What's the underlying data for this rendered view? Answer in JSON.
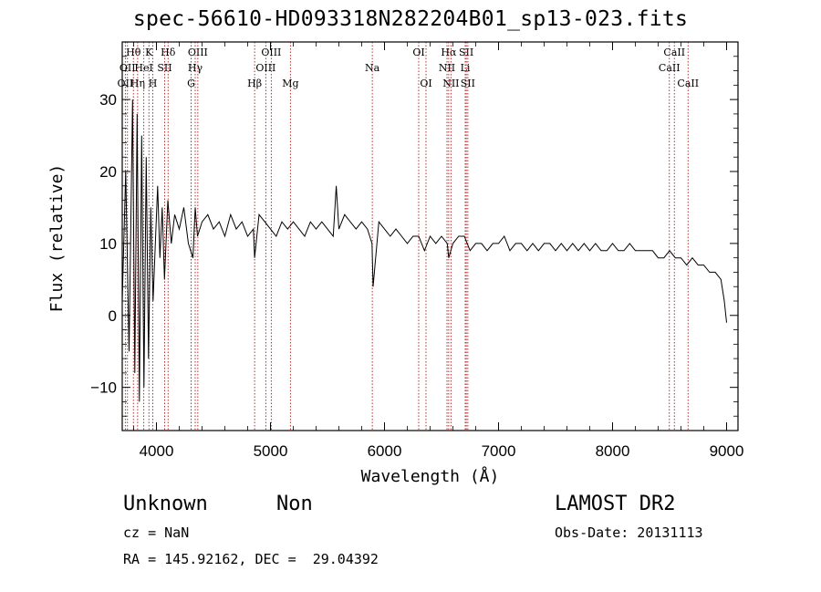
{
  "chart_data": {
    "type": "line",
    "title": "spec-56610-HD093318N282204B01_sp13-023.fits",
    "xlabel": "Wavelength (Å)",
    "ylabel": "Flux (relative)",
    "xlim": [
      3700,
      9100
    ],
    "ylim": [
      -16,
      38
    ],
    "xticks": [
      4000,
      5000,
      6000,
      7000,
      8000,
      9000
    ],
    "yticks": [
      -10,
      0,
      10,
      20,
      30
    ],
    "xtick_labels": [
      "4000",
      "5000",
      "6000",
      "7000",
      "8000",
      "9000"
    ],
    "ytick_labels": [
      "−10",
      "0",
      "10",
      "20",
      "30"
    ],
    "grid": false,
    "series": [
      {
        "x": [
          3700,
          3730,
          3760,
          3790,
          3810,
          3830,
          3850,
          3870,
          3890,
          3910,
          3930,
          3950,
          3970,
          3990,
          4010,
          4030,
          4050,
          4070,
          4100,
          4130,
          4160,
          4200,
          4240,
          4280,
          4320,
          4340,
          4360,
          4400,
          4450,
          4500,
          4550,
          4600,
          4650,
          4700,
          4750,
          4800,
          4850,
          4861,
          4900,
          4950,
          5000,
          5050,
          5100,
          5150,
          5200,
          5250,
          5300,
          5350,
          5400,
          5450,
          5500,
          5550,
          5577,
          5600,
          5650,
          5700,
          5750,
          5800,
          5850,
          5890,
          5900,
          5950,
          6000,
          6050,
          6100,
          6150,
          6200,
          6250,
          6300,
          6350,
          6400,
          6450,
          6500,
          6550,
          6563,
          6600,
          6650,
          6700,
          6750,
          6800,
          6850,
          6900,
          6950,
          7000,
          7050,
          7100,
          7150,
          7200,
          7250,
          7300,
          7350,
          7400,
          7450,
          7500,
          7550,
          7600,
          7650,
          7700,
          7750,
          7800,
          7850,
          7900,
          7950,
          8000,
          8050,
          8100,
          8150,
          8200,
          8250,
          8300,
          8350,
          8400,
          8450,
          8500,
          8550,
          8600,
          8650,
          8700,
          8750,
          8800,
          8850,
          8900,
          8950,
          8980,
          9000
        ],
        "values": [
          2,
          20,
          -5,
          30,
          -8,
          28,
          -12,
          25,
          -10,
          22,
          -6,
          15,
          2,
          10,
          18,
          8,
          15,
          5,
          16,
          10,
          14,
          12,
          15,
          10,
          8,
          15,
          11,
          13,
          14,
          12,
          13,
          11,
          14,
          12,
          13,
          11,
          12,
          8,
          14,
          13,
          12,
          11,
          13,
          12,
          13,
          12,
          11,
          13,
          12,
          13,
          12,
          11,
          18,
          12,
          14,
          13,
          12,
          13,
          12,
          10,
          4,
          13,
          12,
          11,
          12,
          11,
          10,
          11,
          11,
          9,
          11,
          10,
          11,
          10,
          8,
          10,
          11,
          11,
          9,
          10,
          10,
          9,
          10,
          10,
          11,
          9,
          10,
          10,
          9,
          10,
          9,
          10,
          10,
          9,
          10,
          9,
          10,
          9,
          10,
          9,
          10,
          9,
          9,
          10,
          9,
          9,
          10,
          9,
          9,
          9,
          9,
          8,
          8,
          9,
          8,
          8,
          7,
          8,
          7,
          7,
          6,
          6,
          5,
          2,
          -1
        ]
      }
    ],
    "lines": [
      {
        "label": "OII",
        "x": 3727,
        "row": 3
      },
      {
        "label": "Hθ",
        "x": 3798,
        "row": 1
      },
      {
        "label": "OII",
        "x": 3746,
        "row": 2
      },
      {
        "label": "Hη",
        "x": 3835,
        "row": 3
      },
      {
        "label": "K",
        "x": 3934,
        "row": 1
      },
      {
        "label": "HeI",
        "x": 3889,
        "row": 2
      },
      {
        "label": "H",
        "x": 3968,
        "row": 3
      },
      {
        "label": "Hδ",
        "x": 4102,
        "row": 1
      },
      {
        "label": "SII",
        "x": 4072,
        "row": 2
      },
      {
        "label": "OIII",
        "x": 4363,
        "row": 1
      },
      {
        "label": "Hγ",
        "x": 4340,
        "row": 2
      },
      {
        "label": "G",
        "x": 4304,
        "row": 3
      },
      {
        "label": "Hβ",
        "x": 4861,
        "row": 3
      },
      {
        "label": "OIII",
        "x": 5007,
        "row": 1
      },
      {
        "label": "OIII",
        "x": 4959,
        "row": 2
      },
      {
        "label": "Mg",
        "x": 5175,
        "row": 3
      },
      {
        "label": "Na",
        "x": 5893,
        "row": 2
      },
      {
        "label": "OI",
        "x": 6300,
        "row": 1
      },
      {
        "label": "OI",
        "x": 6364,
        "row": 3
      },
      {
        "label": "Hα",
        "x": 6563,
        "row": 1
      },
      {
        "label": "NII",
        "x": 6548,
        "row": 2
      },
      {
        "label": "NII",
        "x": 6583,
        "row": 3
      },
      {
        "label": "SII",
        "x": 6717,
        "row": 1
      },
      {
        "label": "Li",
        "x": 6708,
        "row": 2
      },
      {
        "label": "SII",
        "x": 6731,
        "row": 3
      },
      {
        "label": "CaII",
        "x": 8542,
        "row": 1
      },
      {
        "label": "CaII",
        "x": 8498,
        "row": 2
      },
      {
        "label": "CaII",
        "x": 8662,
        "row": 3
      }
    ]
  },
  "info": {
    "class": "Unknown",
    "subclass": "Non",
    "survey": "LAMOST DR2",
    "cz": "cz = NaN",
    "obs_date": "Obs-Date: 20131113",
    "radec": "RA = 145.92162, DEC =  29.04392"
  }
}
